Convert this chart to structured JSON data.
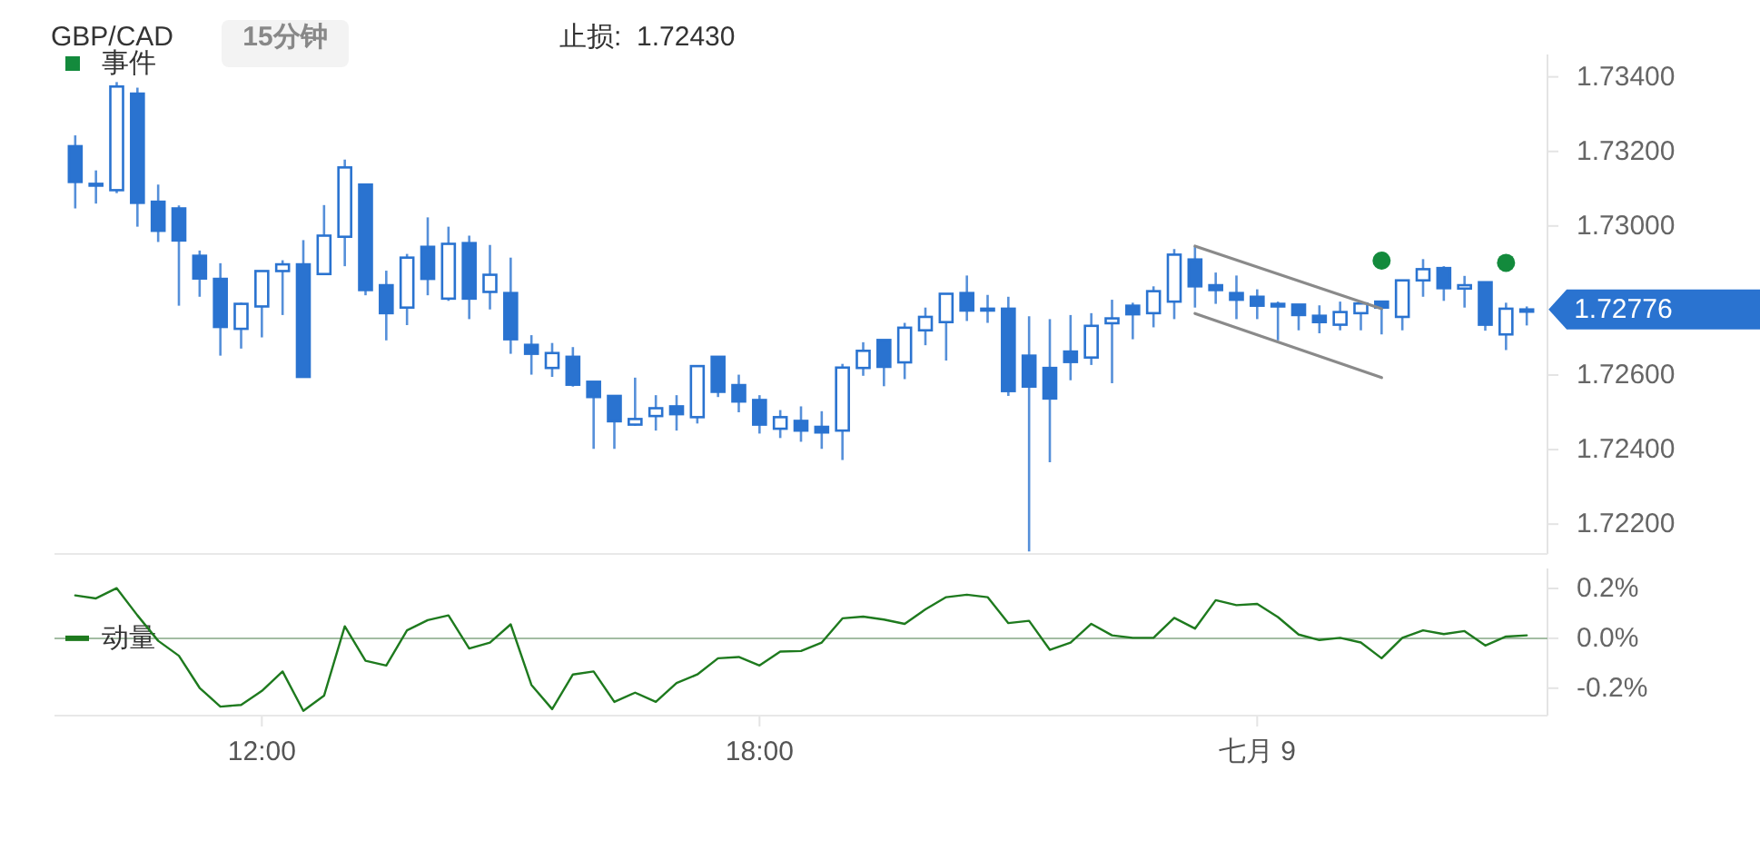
{
  "chart_data": [
    {
      "type": "candlestick",
      "title": "GBP/CAD",
      "subtitle": "15分钟",
      "annotations": [
        "止损:  1.72430",
        {
          "text": "1.72776",
          "x": 27.25,
          "y": 1.72776
        }
      ],
      "xlim": [
        9.5,
        27.5
      ],
      "ylim": [
        1.7212,
        1.7346
      ],
      "yticks": [
        {
          "value": 1.722,
          "label": "1.72200"
        },
        {
          "value": 1.724,
          "label": "1.72400"
        },
        {
          "value": 1.726,
          "label": "1.72600"
        },
        {
          "value": 1.73,
          "label": "1.73000"
        },
        {
          "value": 1.732,
          "label": "1.73200"
        },
        {
          "value": 1.734,
          "label": "1.73400"
        }
      ],
      "tick_labels": "y",
      "legend": "top left",
      "series": [
        {
          "color": "#2a73d0",
          "x": [
            9.75,
            10,
            10.25,
            10.5,
            10.75,
            11,
            11.25,
            11.5,
            11.75,
            12,
            12.25,
            12.5,
            12.75,
            13,
            13.25,
            13.5,
            13.75,
            14,
            14.25,
            14.5,
            14.75,
            15,
            15.25,
            15.5,
            15.75,
            16,
            16.25,
            16.5,
            16.75,
            17,
            17.25,
            17.5,
            17.75,
            18,
            18.25,
            18.5,
            18.75,
            19,
            19.25,
            19.5,
            19.75,
            20,
            20.25,
            20.5,
            20.75,
            21,
            21.25,
            21.5,
            21.75,
            22,
            22.25,
            22.5,
            22.75,
            23,
            23.25,
            23.5,
            23.75,
            24,
            24.25,
            24.5,
            24.75,
            25,
            25.25,
            25.5,
            25.75,
            26,
            26.25,
            26.5,
            26.75,
            27,
            27.25
          ],
          "ohlc": [
            [
              1.73214,
              1.73243,
              1.73047,
              1.73118
            ],
            [
              1.7311,
              1.73149,
              1.7306,
              1.73113
            ],
            [
              1.73096,
              1.73386,
              1.73088,
              1.73374
            ],
            [
              1.73355,
              1.73371,
              1.72998,
              1.73062
            ],
            [
              1.73065,
              1.73111,
              1.72957,
              1.72987
            ],
            [
              1.73047,
              1.73055,
              1.72786,
              1.72961
            ],
            [
              1.7292,
              1.72934,
              1.7281,
              1.72859
            ],
            [
              1.72858,
              1.729,
              1.72652,
              1.72729
            ],
            [
              1.72724,
              1.72794,
              1.72671,
              1.72791
            ],
            [
              1.72784,
              1.72879,
              1.72701,
              1.72879
            ],
            [
              1.72879,
              1.72908,
              1.72761,
              1.72897
            ],
            [
              1.72897,
              1.72962,
              1.72595,
              1.72595
            ],
            [
              1.72871,
              1.73056,
              1.72871,
              1.72974
            ],
            [
              1.72971,
              1.73178,
              1.72892,
              1.73157
            ],
            [
              1.73111,
              1.73111,
              1.72814,
              1.72828
            ],
            [
              1.72841,
              1.7288,
              1.72693,
              1.72766
            ],
            [
              1.72781,
              1.72925,
              1.72734,
              1.72915
            ],
            [
              1.72944,
              1.73023,
              1.72814,
              1.72858
            ],
            [
              1.72805,
              1.72998,
              1.72799,
              1.72952
            ],
            [
              1.72954,
              1.72974,
              1.7275,
              1.72805
            ],
            [
              1.72823,
              1.72949,
              1.72776,
              1.72869
            ],
            [
              1.7282,
              1.72915,
              1.72657,
              1.72696
            ],
            [
              1.72681,
              1.72707,
              1.72601,
              1.72657
            ],
            [
              1.72619,
              1.72686,
              1.72595,
              1.72659
            ],
            [
              1.72649,
              1.72675,
              1.72569,
              1.72574
            ],
            [
              1.72582,
              1.72582,
              1.72402,
              1.72541
            ],
            [
              1.72544,
              1.72544,
              1.72402,
              1.72476
            ],
            [
              1.72467,
              1.72593,
              1.72464,
              1.72482
            ],
            [
              1.7249,
              1.72546,
              1.72451,
              1.72511
            ],
            [
              1.72516,
              1.72546,
              1.72451,
              1.72495
            ],
            [
              1.72487,
              1.72624,
              1.7247,
              1.72624
            ],
            [
              1.72649,
              1.72649,
              1.72541,
              1.72555
            ],
            [
              1.72573,
              1.72601,
              1.725,
              1.72529
            ],
            [
              1.72533,
              1.72546,
              1.72443,
              1.72467
            ],
            [
              1.72456,
              1.72506,
              1.72431,
              1.72487
            ],
            [
              1.72477,
              1.72516,
              1.72421,
              1.72451
            ],
            [
              1.72461,
              1.72503,
              1.72402,
              1.72446
            ],
            [
              1.72451,
              1.7263,
              1.72372,
              1.7262
            ],
            [
              1.72619,
              1.72688,
              1.72598,
              1.72665
            ],
            [
              1.72694,
              1.72694,
              1.7257,
              1.72622
            ],
            [
              1.72634,
              1.7274,
              1.72589,
              1.72727
            ],
            [
              1.7272,
              1.72781,
              1.7268,
              1.72756
            ],
            [
              1.72742,
              1.72818,
              1.72639,
              1.72818
            ],
            [
              1.7282,
              1.72867,
              1.72745,
              1.72773
            ],
            [
              1.72773,
              1.72815,
              1.7274,
              1.72778
            ],
            [
              1.72778,
              1.7281,
              1.72544,
              1.72557
            ],
            [
              1.72652,
              1.72758,
              1.72127,
              1.72569
            ],
            [
              1.72619,
              1.7275,
              1.72366,
              1.72537
            ],
            [
              1.72663,
              1.72761,
              1.72586,
              1.72635
            ],
            [
              1.72647,
              1.72766,
              1.72627,
              1.72732
            ],
            [
              1.72739,
              1.72802,
              1.72578,
              1.72752
            ],
            [
              1.72786,
              1.72794,
              1.72696,
              1.72763
            ],
            [
              1.72766,
              1.72838,
              1.72728,
              1.72825
            ],
            [
              1.72797,
              1.72938,
              1.7275,
              1.72923
            ],
            [
              1.7291,
              1.72946,
              1.72781,
              1.72838
            ],
            [
              1.72841,
              1.72875,
              1.72791,
              1.72828
            ],
            [
              1.7282,
              1.72867,
              1.7275,
              1.72802
            ],
            [
              1.7281,
              1.7283,
              1.7275,
              1.72786
            ],
            [
              1.72791,
              1.72797,
              1.72693,
              1.72784
            ],
            [
              1.72789,
              1.72789,
              1.7272,
              1.72761
            ],
            [
              1.72759,
              1.72787,
              1.72712,
              1.72742
            ],
            [
              1.72735,
              1.72797,
              1.7272,
              1.72769
            ],
            [
              1.72766,
              1.72797,
              1.7272,
              1.72792
            ],
            [
              1.72797,
              1.72797,
              1.72709,
              1.72781
            ],
            [
              1.72756,
              1.72854,
              1.7272,
              1.72854
            ],
            [
              1.72854,
              1.72911,
              1.7281,
              1.72884
            ],
            [
              1.72887,
              1.72892,
              1.72799,
              1.72833
            ],
            [
              1.72832,
              1.72866,
              1.72781,
              1.72841
            ],
            [
              1.72849,
              1.72849,
              1.72719,
              1.72735
            ],
            [
              1.72709,
              1.72794,
              1.72667,
              1.72778
            ],
            [
              1.7277,
              1.72784,
              1.72733,
              1.72776
            ]
          ]
        },
        {
          "type": "scatter",
          "name": "事件",
          "color": "#138a3c",
          "x": [
            25.5,
            27.0
          ],
          "values": [
            1.72907,
            1.72901
          ]
        },
        {
          "type": "line",
          "color": "#8a8a8a",
          "x": [
            23.25,
            25.5
          ],
          "values": [
            1.72946,
            1.72778
          ]
        },
        {
          "type": "line",
          "color": "#8a8a8a",
          "x": [
            23.25,
            25.5
          ],
          "values": [
            1.72765,
            1.72593
          ]
        }
      ]
    },
    {
      "type": "line",
      "xlim": [
        9.5,
        27.5
      ],
      "ylim": [
        -0.31,
        0.28
      ],
      "legend": "top left",
      "xticks": [
        {
          "value": 12,
          "label": "12:00"
        },
        {
          "value": 18,
          "label": "18:00"
        },
        {
          "value": 24,
          "label": "七月 9"
        }
      ],
      "yticks": [
        {
          "value": 0.2,
          "label": "0.2%"
        },
        {
          "value": 0,
          "label": "0.0%"
        },
        {
          "value": -0.2,
          "label": "-0.2%"
        }
      ],
      "ref_lines": [
        {
          "axis": "y",
          "value": 0,
          "color": "#a3bca3"
        }
      ],
      "series": [
        {
          "name": "动量",
          "color": "#1e7a1e",
          "x": [
            9.75,
            10,
            10.25,
            10.5,
            10.75,
            11,
            11.25,
            11.5,
            11.75,
            12,
            12.25,
            12.5,
            12.75,
            13,
            13.25,
            13.5,
            13.75,
            14,
            14.25,
            14.5,
            14.75,
            15,
            15.25,
            15.5,
            15.75,
            16,
            16.25,
            16.5,
            16.75,
            17,
            17.25,
            17.5,
            17.75,
            18,
            18.25,
            18.5,
            18.75,
            19,
            19.25,
            19.5,
            19.75,
            20,
            20.25,
            20.5,
            20.75,
            21,
            21.25,
            21.5,
            21.75,
            22,
            22.25,
            22.5,
            22.75,
            23,
            23.25,
            23.5,
            23.75,
            24,
            24.25,
            24.5,
            24.75,
            25,
            25.25,
            25.5,
            25.75,
            26,
            26.25,
            26.5,
            26.75,
            27,
            27.25
          ],
          "values": [
            0.172,
            0.16,
            0.201,
            0.092,
            -0.01,
            -0.07,
            -0.199,
            -0.274,
            -0.267,
            -0.211,
            -0.133,
            -0.291,
            -0.23,
            0.048,
            -0.09,
            -0.109,
            0.032,
            0.073,
            0.092,
            -0.041,
            -0.017,
            0.056,
            -0.187,
            -0.284,
            -0.145,
            -0.133,
            -0.255,
            -0.218,
            -0.255,
            -0.179,
            -0.145,
            -0.08,
            -0.075,
            -0.109,
            -0.053,
            -0.051,
            -0.017,
            0.08,
            0.087,
            0.075,
            0.058,
            0.116,
            0.165,
            0.175,
            0.165,
            0.061,
            0.07,
            -0.046,
            -0.017,
            0.058,
            0.012,
            0.002,
            0.002,
            0.082,
            0.039,
            0.153,
            0.133,
            0.138,
            0.085,
            0.015,
            -0.007,
            0.002,
            -0.017,
            -0.08,
            0.002,
            0.032,
            0.017,
            0.029,
            -0.029,
            0.007,
            0.012
          ]
        }
      ]
    }
  ]
}
